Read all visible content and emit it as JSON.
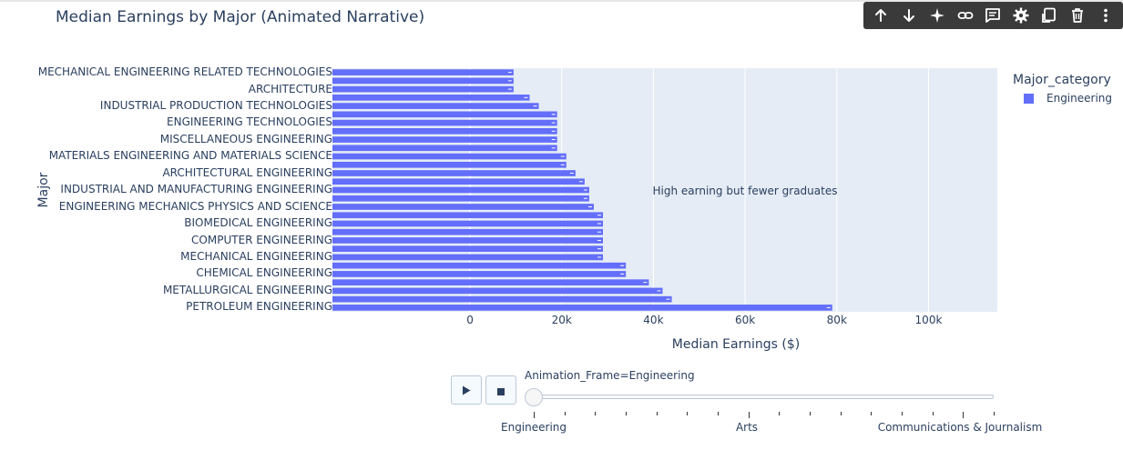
{
  "title": "Median Earnings by Major (Animated Narrative)",
  "toolbar": {
    "buttons": [
      "arrow-up-icon",
      "arrow-down-icon",
      "sparkle-icon",
      "link-icon",
      "comment-icon",
      "gear-icon",
      "embed-icon",
      "trash-icon",
      "more-icon"
    ]
  },
  "legend": {
    "title": "Major_category",
    "items": [
      {
        "label": "Engineering",
        "color": "#636efa"
      }
    ]
  },
  "annotation": "High earning but fewer graduates",
  "slider": {
    "current_label": "Animation_Frame=Engineering",
    "step_labels": [
      "Engineering",
      "Arts",
      "Communications & Journalism"
    ],
    "play_icon": "play-icon",
    "stop_icon": "stop-icon"
  },
  "colors": {
    "bar": "#636efa",
    "plot_bg": "#e5ecf6",
    "text": "#2a3f5f"
  },
  "chart_data": {
    "type": "bar",
    "orientation": "horizontal",
    "title": "Median Earnings by Major (Animated Narrative)",
    "xlabel": "Median Earnings ($)",
    "ylabel": "Major",
    "xlim": [
      -30000,
      115000
    ],
    "xticks": [
      0,
      20000,
      40000,
      60000,
      80000,
      100000
    ],
    "xtick_labels": [
      "0",
      "20k",
      "40k",
      "60k",
      "80k",
      "100k"
    ],
    "category_labels_shown": [
      "MECHANICAL ENGINEERING RELATED TECHNOLOGIES",
      "ARCHITECTURE",
      "INDUSTRIAL PRODUCTION TECHNOLOGIES",
      "ENGINEERING TECHNOLOGIES",
      "MISCELLANEOUS ENGINEERING",
      "MATERIALS ENGINEERING AND MATERIALS SCIENCE",
      "ARCHITECTURAL ENGINEERING",
      "INDUSTRIAL AND MANUFACTURING ENGINEERING",
      "ENGINEERING MECHANICS PHYSICS AND SCIENCE",
      "BIOMEDICAL ENGINEERING",
      "COMPUTER ENGINEERING",
      "MECHANICAL ENGINEERING",
      "CHEMICAL ENGINEERING",
      "METALLURGICAL ENGINEERING",
      "PETROLEUM ENGINEERING"
    ],
    "series": [
      {
        "name": "Engineering",
        "values": [
          9500,
          9500,
          9500,
          13000,
          15000,
          19000,
          19000,
          19000,
          19000,
          19000,
          21000,
          21000,
          23000,
          25000,
          26000,
          26000,
          27000,
          29000,
          29000,
          29000,
          29000,
          29000,
          29000,
          34000,
          34000,
          39000,
          42000,
          44000,
          79000
        ]
      }
    ]
  }
}
